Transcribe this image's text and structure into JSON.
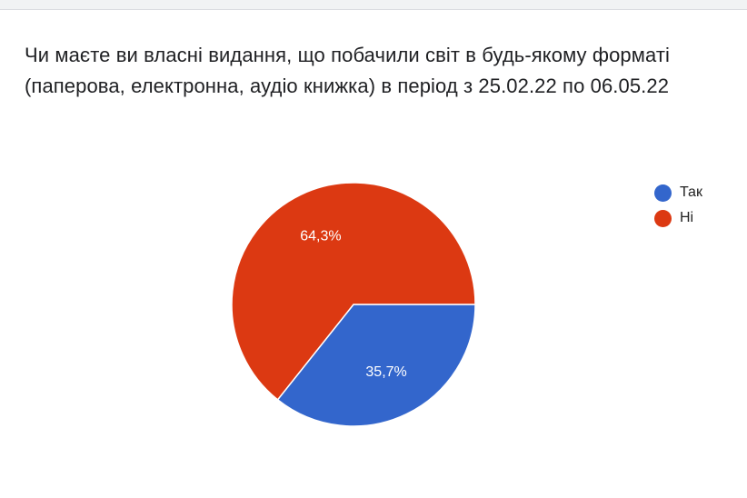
{
  "question": {
    "title_line1": "Чи маєте ви власні видання, що побачили світ в будь-якому форматі",
    "title_line2": "(паперова, електронна, аудіо книжка) в період з 25.02.22 по 06.05.22"
  },
  "chart_data": {
    "type": "pie",
    "title": "",
    "categories": [
      "Так",
      "Ні"
    ],
    "values": [
      35.7,
      64.3
    ],
    "labels": [
      "35,7%",
      "64,3%"
    ],
    "colors": [
      "#3366cc",
      "#dc3912"
    ],
    "legend_position": "right",
    "start_direction": "east",
    "direction": "clockwise"
  }
}
